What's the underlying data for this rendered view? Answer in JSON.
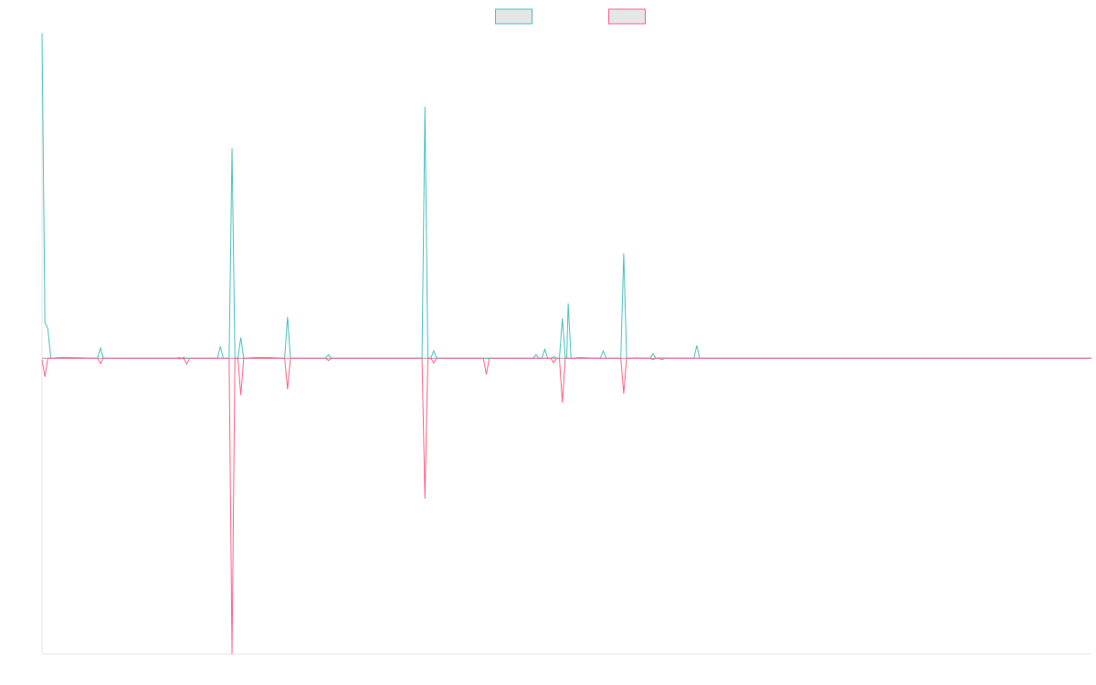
{
  "chart_data": {
    "type": "line",
    "x_count": 360,
    "ylim": [
      -100,
      110
    ],
    "grid": false,
    "legend": "top-center",
    "series": [
      {
        "color": "#4bc0c0",
        "fill": "#e6e6e6",
        "points": [
          [
            0,
            110
          ],
          [
            1,
            12
          ],
          [
            2,
            10
          ],
          [
            3,
            0
          ],
          [
            7,
            0.3
          ],
          [
            19,
            0
          ],
          [
            20,
            3.4
          ],
          [
            21,
            0
          ],
          [
            46,
            0
          ],
          [
            47,
            0.2
          ],
          [
            48,
            0
          ],
          [
            48.5,
            0.3
          ],
          [
            49,
            0
          ],
          [
            60,
            0
          ],
          [
            61,
            4
          ],
          [
            62,
            0
          ],
          [
            64,
            0
          ],
          [
            65,
            71
          ],
          [
            66,
            0
          ],
          [
            67,
            0
          ],
          [
            68,
            7
          ],
          [
            69,
            0
          ],
          [
            73,
            0.2
          ],
          [
            78,
            0.2
          ],
          [
            83,
            0
          ],
          [
            84,
            14
          ],
          [
            85,
            0
          ],
          [
            97,
            0
          ],
          [
            98,
            1.2
          ],
          [
            99,
            0
          ],
          [
            130,
            0
          ],
          [
            131,
            85
          ],
          [
            132,
            0
          ],
          [
            133,
            0
          ],
          [
            134,
            2.5
          ],
          [
            135,
            0
          ],
          [
            150,
            0
          ],
          [
            168,
            0
          ],
          [
            169,
            1.2
          ],
          [
            170,
            0
          ],
          [
            171,
            0
          ],
          [
            172,
            3
          ],
          [
            173,
            0
          ],
          [
            174,
            0
          ],
          [
            175,
            0.5
          ],
          [
            176,
            0
          ],
          [
            177,
            0
          ],
          [
            178,
            13.5
          ],
          [
            179,
            0
          ],
          [
            179.5,
            0
          ],
          [
            180,
            18.5
          ],
          [
            181,
            0
          ],
          [
            184,
            0.2
          ],
          [
            191,
            0
          ],
          [
            192,
            2.5
          ],
          [
            193,
            0
          ],
          [
            198,
            0
          ],
          [
            199,
            35.5
          ],
          [
            200,
            0
          ],
          [
            203,
            0.1
          ],
          [
            208,
            0
          ],
          [
            209,
            1.5
          ],
          [
            210,
            0
          ],
          [
            211,
            0.1
          ],
          [
            223,
            0
          ],
          [
            224,
            4.3
          ],
          [
            225,
            0
          ],
          [
            359,
            0
          ]
        ]
      },
      {
        "color": "#ff6384",
        "fill": "#e6e6e6",
        "points": [
          [
            0,
            -0.5
          ],
          [
            1,
            -6.3
          ],
          [
            2,
            0
          ],
          [
            19,
            0
          ],
          [
            20,
            -1.8
          ],
          [
            21,
            0
          ],
          [
            46,
            0
          ],
          [
            47,
            -0.2
          ],
          [
            48,
            0
          ],
          [
            48.5,
            -0.3
          ],
          [
            49,
            0
          ],
          [
            48.5,
            0
          ],
          [
            49.5,
            -2
          ],
          [
            50.5,
            0
          ],
          [
            64,
            0
          ],
          [
            65,
            -100
          ],
          [
            66,
            0
          ],
          [
            67,
            0
          ],
          [
            68,
            -12.5
          ],
          [
            69,
            0
          ],
          [
            83,
            0
          ],
          [
            84,
            -10.5
          ],
          [
            85,
            0
          ],
          [
            97,
            0
          ],
          [
            98,
            -0.8
          ],
          [
            99,
            0
          ],
          [
            130,
            0
          ],
          [
            131,
            -47.5
          ],
          [
            132,
            0
          ],
          [
            133,
            0
          ],
          [
            134,
            -1.6
          ],
          [
            135,
            0
          ],
          [
            151,
            0
          ],
          [
            152,
            -5.5
          ],
          [
            153,
            0
          ],
          [
            174,
            0
          ],
          [
            175,
            -1.5
          ],
          [
            176,
            0
          ],
          [
            177,
            0
          ],
          [
            178,
            -15
          ],
          [
            179,
            0
          ],
          [
            198,
            0
          ],
          [
            199,
            -12
          ],
          [
            200,
            0
          ],
          [
            208,
            0
          ],
          [
            209,
            -0.5
          ],
          [
            210,
            0
          ],
          [
            211,
            0
          ],
          [
            212,
            -0.5
          ],
          [
            213,
            0
          ],
          [
            359,
            0
          ]
        ]
      }
    ]
  }
}
